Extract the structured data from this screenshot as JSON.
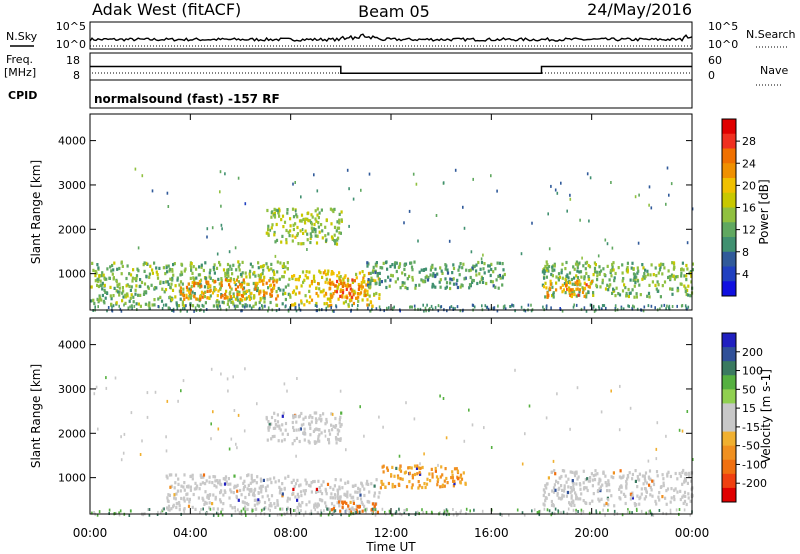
{
  "header": {
    "station": "Adak West (fitACF)",
    "beam": "Beam 05",
    "date": "24/May/2016"
  },
  "side_labels": {
    "nsky": "N.Sky",
    "freq_top": "Freq.",
    "freq_unit": "[MHz]",
    "cpid": "CPID",
    "nsearch": "N.Search",
    "nave": "Nave"
  },
  "mode_text": "normalsound (fast) -157 RF",
  "noise_panel": {
    "left_ticks": [
      "10^5",
      "10^0"
    ],
    "right_ticks": [
      "10^5",
      "10^0"
    ]
  },
  "freq_panel": {
    "left_ticks": [
      "18",
      "8"
    ],
    "right_ticks": [
      "60",
      "0"
    ]
  },
  "x_axis": {
    "label": "Time UT",
    "ticks": [
      "00:00",
      "04:00",
      "08:00",
      "12:00",
      "16:00",
      "20:00",
      "00:00"
    ]
  },
  "y_axis": {
    "label": "Slant Range [km]",
    "ticks": [
      "4000",
      "3000",
      "2000",
      "1000"
    ]
  },
  "power_scale": {
    "label": "Power [dB]",
    "ticks": [
      "28",
      "24",
      "20",
      "16",
      "12",
      "8",
      "4"
    ],
    "colors": [
      "#e00000",
      "#f03020",
      "#f07000",
      "#f09000",
      "#f0c000",
      "#c8c800",
      "#90c040",
      "#60a860",
      "#409070",
      "#305a9a",
      "#2040c0",
      "#1010e0"
    ]
  },
  "velocity_scale": {
    "label": "Velocity [m s-1]",
    "ticks": [
      "200",
      "100",
      "50",
      "15",
      "-15",
      "-50",
      "-100",
      "-200"
    ],
    "colors": [
      "#2020c0",
      "#305098",
      "#3a7a60",
      "#55b040",
      "#90d050",
      "#c8c8c8",
      "#c8c8c8",
      "#f0b030",
      "#f09020",
      "#f07010",
      "#f04010",
      "#e00000"
    ]
  },
  "chart_data": [
    {
      "type": "line",
      "name": "noise",
      "x_range": [
        0,
        24
      ],
      "ylim_log10": [
        0,
        5
      ],
      "approx_level": "near 10^0 with small fluctuations, slight bump near 10:00-11:00 UT"
    },
    {
      "type": "line",
      "name": "frequency",
      "x": [
        0,
        10,
        10,
        18,
        18,
        24
      ],
      "y_mhz": [
        13,
        13,
        10.5,
        10.5,
        13,
        13
      ],
      "ylim": [
        8,
        18
      ]
    },
    {
      "type": "heatmap",
      "name": "power",
      "x_range_hours": [
        0,
        24
      ],
      "y_range_km": [
        180,
        4600
      ],
      "unit": "dB",
      "scale": [
        0,
        30
      ],
      "regions": [
        {
          "t0": 0.0,
          "t1": 8.0,
          "r0": 300,
          "r1": 1300,
          "level": 12
        },
        {
          "t0": 3.5,
          "t1": 7.5,
          "r0": 450,
          "r1": 900,
          "level": 22
        },
        {
          "t0": 8.0,
          "t1": 11.5,
          "r0": 300,
          "r1": 1100,
          "level": 18
        },
        {
          "t0": 9.5,
          "t1": 11.0,
          "r0": 450,
          "r1": 900,
          "level": 24
        },
        {
          "t0": 11.0,
          "t1": 16.5,
          "r0": 700,
          "r1": 1300,
          "level": 10
        },
        {
          "t0": 7.0,
          "t1": 10.0,
          "r0": 1700,
          "r1": 2500,
          "level": 14
        },
        {
          "t0": 18.0,
          "t1": 24.0,
          "r0": 500,
          "r1": 1300,
          "level": 12
        },
        {
          "t0": 18.0,
          "t1": 20.0,
          "r0": 500,
          "r1": 900,
          "level": 22
        }
      ]
    },
    {
      "type": "heatmap",
      "name": "velocity",
      "x_range_hours": [
        0,
        24
      ],
      "y_range_km": [
        180,
        4600
      ],
      "unit": "m s-1",
      "scale": [
        -250,
        250
      ],
      "regions": [
        {
          "t0": 3.0,
          "t1": 8.0,
          "r0": 300,
          "r1": 1100,
          "level": 0
        },
        {
          "t0": 7.0,
          "t1": 10.0,
          "r0": 1800,
          "r1": 2500,
          "level": 0
        },
        {
          "t0": 8.0,
          "t1": 11.5,
          "r0": 300,
          "r1": 1000,
          "level": 0
        },
        {
          "t0": 11.5,
          "t1": 15.0,
          "r0": 800,
          "r1": 1300,
          "level": -50
        },
        {
          "t0": 9.5,
          "t1": 11.5,
          "r0": 250,
          "r1": 500,
          "level": -100
        },
        {
          "t0": 18.0,
          "t1": 24.0,
          "r0": 400,
          "r1": 1200,
          "level": 0
        }
      ]
    }
  ]
}
